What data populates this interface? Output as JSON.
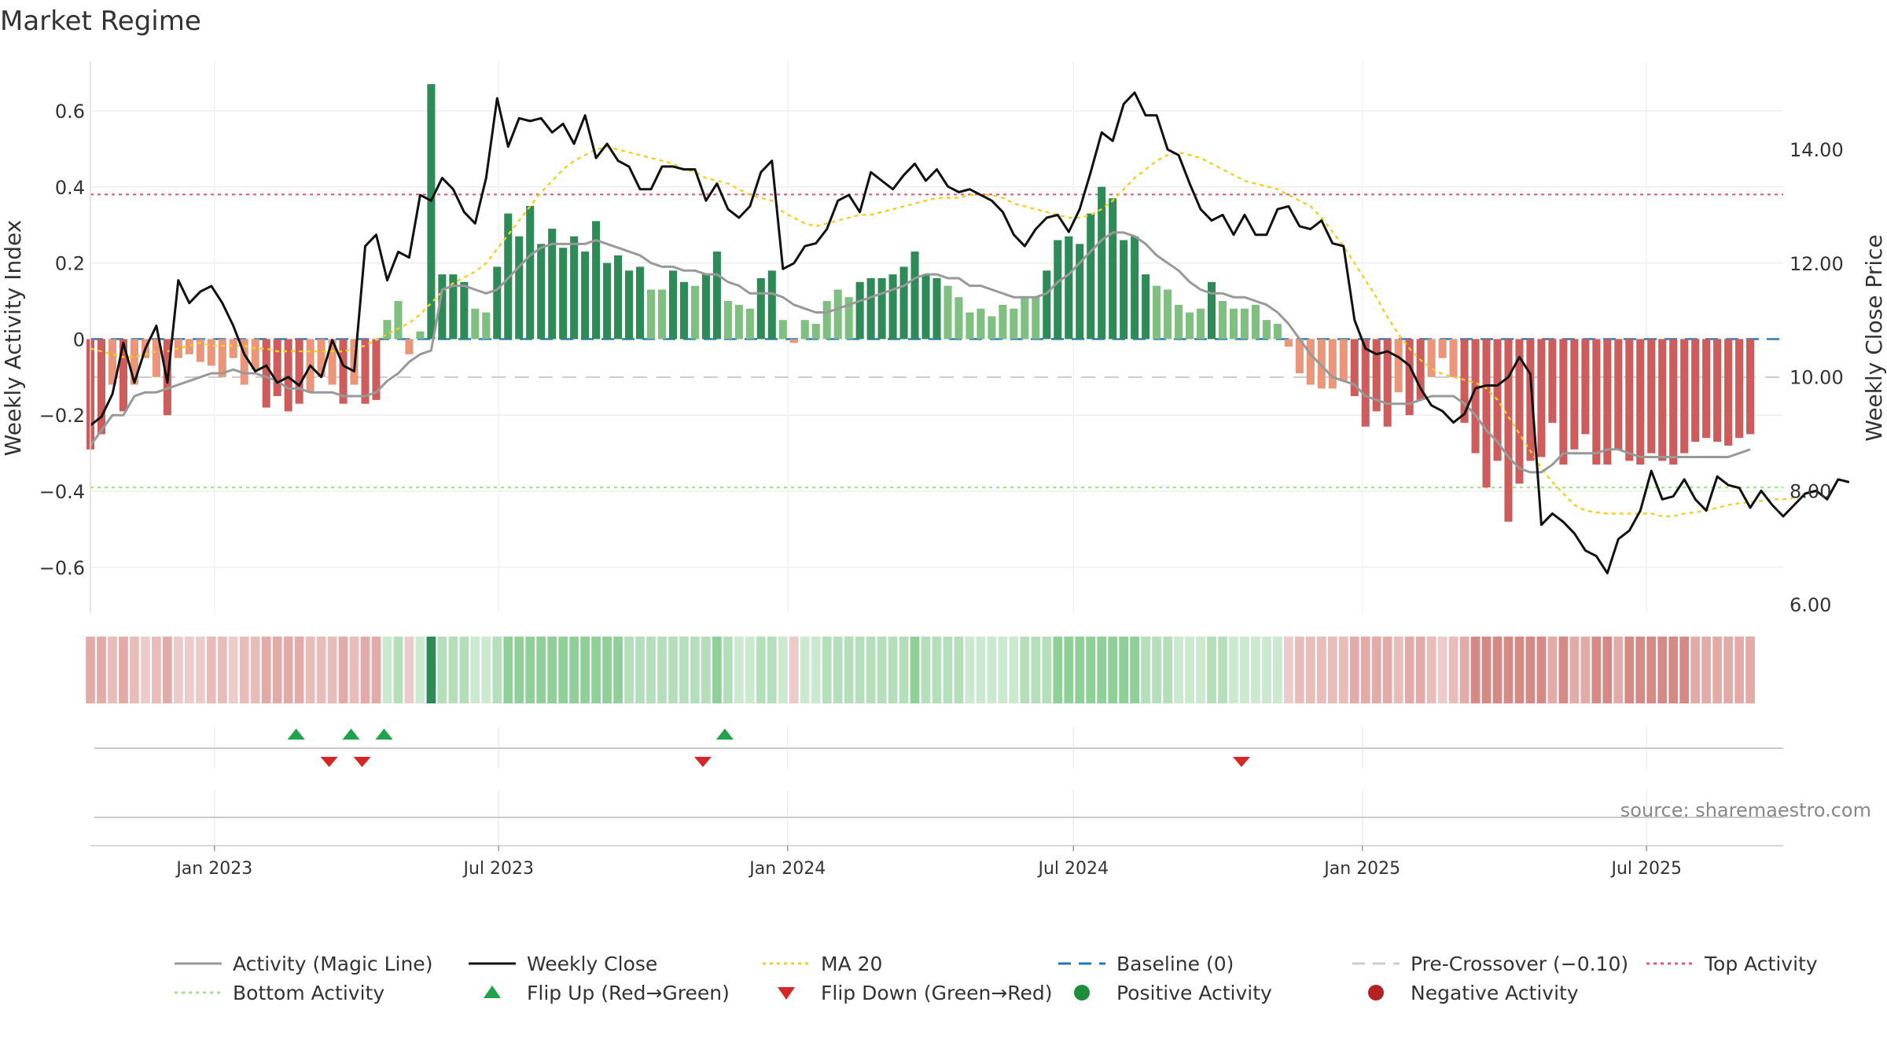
{
  "title": "Market Regime",
  "source": "source: sharemaestro.com",
  "colors": {
    "pos_strong": "#2e8b57",
    "pos_weak": "#7fbf7f",
    "neg_strong": "#cd5c5c",
    "neg_weak": "#e9967a",
    "close": "#111111",
    "activity": "#999999",
    "ma": "#f2d021",
    "baseline": "#1f77b4",
    "pre": "#cccccc",
    "top": "#e05a7a",
    "bottom": "#a6e08a",
    "flip_up": "#22a24a",
    "flip_down": "#d62728",
    "pos_dot": "#1e8c3a",
    "neg_dot": "#b22222"
  },
  "chart_data": {
    "type": "bar",
    "title": "Market Regime",
    "ylabel_left": "Weekly Activity Index",
    "ylabel_right": "Weekly Close Price",
    "yticks_left": [
      "0.6",
      "0.4",
      "0.2",
      "0",
      "−0.2",
      "−0.4",
      "−0.6"
    ],
    "yticks_left_values": [
      0.6,
      0.4,
      0.2,
      0,
      -0.2,
      -0.4,
      -0.6
    ],
    "yticks_right": [
      "14.00",
      "12.00",
      "10.00",
      "8.00",
      "6.00"
    ],
    "yticks_right_values": [
      14,
      12,
      10,
      8,
      6
    ],
    "ylim_left": [
      -0.72,
      0.73
    ],
    "ylim_right": [
      5.85,
      15.55
    ],
    "x_range": [
      "2022-10-14",
      "2025-09-26"
    ],
    "xticks": [
      {
        "date": "2023-01-01",
        "label": "Jan 2023"
      },
      {
        "date": "2023-07-01",
        "label": "Jul 2023"
      },
      {
        "date": "2024-01-01",
        "label": "Jan 2024"
      },
      {
        "date": "2024-07-01",
        "label": "Jul 2024"
      },
      {
        "date": "2025-01-01",
        "label": "Jan 2025"
      },
      {
        "date": "2025-07-01",
        "label": "Jul 2025"
      }
    ],
    "start_date": "2022-10-14",
    "interval_days": 7,
    "activity_index": [
      -0.29,
      -0.25,
      -0.12,
      -0.19,
      -0.12,
      -0.05,
      -0.1,
      -0.2,
      -0.05,
      -0.04,
      -0.06,
      -0.07,
      -0.1,
      -0.05,
      -0.12,
      -0.08,
      -0.18,
      -0.15,
      -0.19,
      -0.17,
      -0.14,
      -0.1,
      -0.12,
      -0.17,
      -0.12,
      -0.17,
      -0.16,
      0.05,
      0.1,
      -0.04,
      0.02,
      0.67,
      0.17,
      0.17,
      0.15,
      0.08,
      0.07,
      0.19,
      0.33,
      0.27,
      0.35,
      0.25,
      0.29,
      0.24,
      0.27,
      0.23,
      0.31,
      0.2,
      0.22,
      0.18,
      0.19,
      0.13,
      0.13,
      0.18,
      0.15,
      0.14,
      0.17,
      0.23,
      0.1,
      0.09,
      0.08,
      0.16,
      0.18,
      0.05,
      -0.01,
      0.05,
      0.04,
      0.1,
      0.13,
      0.11,
      0.15,
      0.16,
      0.16,
      0.17,
      0.19,
      0.23,
      0.17,
      0.16,
      0.14,
      0.11,
      0.07,
      0.08,
      0.06,
      0.09,
      0.08,
      0.11,
      0.11,
      0.18,
      0.26,
      0.27,
      0.25,
      0.33,
      0.4,
      0.37,
      0.26,
      0.27,
      0.17,
      0.14,
      0.13,
      0.09,
      0.07,
      0.08,
      0.15,
      0.1,
      0.08,
      0.08,
      0.09,
      0.05,
      0.04,
      -0.02,
      -0.09,
      -0.12,
      -0.13,
      -0.13,
      -0.11,
      -0.15,
      -0.23,
      -0.19,
      -0.23,
      -0.14,
      -0.2,
      -0.16,
      -0.1,
      -0.05,
      -0.1,
      -0.22,
      -0.3,
      -0.39,
      -0.32,
      -0.48,
      -0.38,
      -0.32,
      -0.31,
      -0.22,
      -0.33,
      -0.29,
      -0.25,
      -0.33,
      -0.33,
      -0.29,
      -0.32,
      -0.33,
      -0.3,
      -0.32,
      -0.33,
      -0.3,
      -0.27,
      -0.26,
      -0.27,
      -0.28,
      -0.26,
      -0.25
    ],
    "weekly_close": [
      9.15,
      9.3,
      9.7,
      10.6,
      9.9,
      10.5,
      10.9,
      9.9,
      11.7,
      11.3,
      11.5,
      11.6,
      11.3,
      10.9,
      10.4,
      10.1,
      10.2,
      9.9,
      10.0,
      9.85,
      10.2,
      10.0,
      10.65,
      10.2,
      10.1,
      12.3,
      12.5,
      11.7,
      12.2,
      12.1,
      13.2,
      13.1,
      13.5,
      13.3,
      12.9,
      12.7,
      13.5,
      14.9,
      14.05,
      14.55,
      14.5,
      14.55,
      14.3,
      14.45,
      14.1,
      14.6,
      13.85,
      14.1,
      13.8,
      13.7,
      13.3,
      13.3,
      13.7,
      13.7,
      13.65,
      13.65,
      13.1,
      13.4,
      12.95,
      12.8,
      13.0,
      13.6,
      13.8,
      11.9,
      12.0,
      12.3,
      12.35,
      12.6,
      13.1,
      13.2,
      12.9,
      13.6,
      13.45,
      13.3,
      13.55,
      13.75,
      13.45,
      13.65,
      13.35,
      13.25,
      13.3,
      13.2,
      13.1,
      12.9,
      12.5,
      12.3,
      12.6,
      12.8,
      12.85,
      12.55,
      12.95,
      13.6,
      14.3,
      14.15,
      14.8,
      15.0,
      14.6,
      14.6,
      14.0,
      13.9,
      13.4,
      12.95,
      12.75,
      12.85,
      12.5,
      12.85,
      12.5,
      12.5,
      12.95,
      13.0,
      12.65,
      12.6,
      12.75,
      12.35,
      12.3,
      11.0,
      10.5,
      10.4,
      10.45,
      10.35,
      10.2,
      9.8,
      9.5,
      9.4,
      9.2,
      9.35,
      9.8,
      9.85,
      9.85,
      10.0,
      10.35,
      10.05,
      7.4,
      7.6,
      7.45,
      7.25,
      6.95,
      6.85,
      6.55,
      7.15,
      7.3,
      7.65,
      8.35,
      7.85,
      7.9,
      8.2,
      7.85,
      7.65,
      8.25,
      8.1,
      8.05,
      7.7,
      8.0,
      7.75,
      7.55,
      7.75,
      7.95,
      8.0,
      7.85,
      8.2,
      8.15
    ],
    "activity_magic_line": [
      -0.28,
      -0.24,
      -0.2,
      -0.2,
      -0.15,
      -0.14,
      -0.14,
      -0.13,
      -0.12,
      -0.11,
      -0.1,
      -0.09,
      -0.09,
      -0.08,
      -0.09,
      -0.09,
      -0.1,
      -0.11,
      -0.13,
      -0.13,
      -0.14,
      -0.14,
      -0.14,
      -0.15,
      -0.15,
      -0.15,
      -0.14,
      -0.11,
      -0.09,
      -0.06,
      -0.04,
      -0.03,
      0.13,
      0.14,
      0.14,
      0.13,
      0.12,
      0.13,
      0.16,
      0.19,
      0.22,
      0.24,
      0.25,
      0.25,
      0.25,
      0.25,
      0.26,
      0.25,
      0.24,
      0.23,
      0.22,
      0.2,
      0.19,
      0.19,
      0.18,
      0.18,
      0.17,
      0.17,
      0.15,
      0.14,
      0.12,
      0.12,
      0.12,
      0.11,
      0.09,
      0.08,
      0.07,
      0.07,
      0.08,
      0.09,
      0.1,
      0.11,
      0.12,
      0.13,
      0.14,
      0.16,
      0.17,
      0.17,
      0.16,
      0.16,
      0.14,
      0.14,
      0.13,
      0.12,
      0.11,
      0.11,
      0.11,
      0.12,
      0.15,
      0.17,
      0.2,
      0.23,
      0.26,
      0.28,
      0.28,
      0.27,
      0.25,
      0.22,
      0.2,
      0.18,
      0.15,
      0.13,
      0.12,
      0.12,
      0.11,
      0.11,
      0.1,
      0.09,
      0.07,
      0.04,
      0.0,
      -0.04,
      -0.07,
      -0.1,
      -0.11,
      -0.12,
      -0.15,
      -0.16,
      -0.17,
      -0.17,
      -0.17,
      -0.16,
      -0.15,
      -0.15,
      -0.15,
      -0.17,
      -0.2,
      -0.24,
      -0.27,
      -0.31,
      -0.34,
      -0.35,
      -0.35,
      -0.33,
      -0.3,
      -0.3,
      -0.3,
      -0.3,
      -0.29,
      -0.29,
      -0.3,
      -0.31,
      -0.31,
      -0.31,
      -0.31,
      -0.31,
      -0.31,
      -0.31,
      -0.31,
      -0.31,
      -0.3,
      -0.29
    ],
    "ma_20": [
      10.5,
      10.45,
      10.4,
      10.35,
      10.35,
      10.4,
      10.45,
      10.45,
      10.5,
      10.55,
      10.6,
      10.55,
      10.55,
      10.55,
      10.55,
      10.5,
      10.5,
      10.45,
      10.45,
      10.45,
      10.45,
      10.45,
      10.45,
      10.45,
      10.5,
      10.55,
      10.65,
      10.75,
      10.85,
      10.95,
      11.1,
      11.3,
      11.5,
      11.65,
      11.75,
      11.85,
      12.0,
      12.25,
      12.5,
      12.75,
      13.0,
      13.25,
      13.45,
      13.65,
      13.8,
      13.9,
      14.0,
      14.05,
      14.0,
      13.95,
      13.9,
      13.85,
      13.8,
      13.75,
      13.65,
      13.6,
      13.5,
      13.45,
      13.4,
      13.3,
      13.2,
      13.15,
      13.1,
      12.9,
      12.8,
      12.7,
      12.65,
      12.7,
      12.75,
      12.8,
      12.85,
      12.85,
      12.9,
      12.95,
      13.0,
      13.05,
      13.1,
      13.15,
      13.15,
      13.15,
      13.2,
      13.2,
      13.2,
      13.15,
      13.05,
      13.0,
      12.95,
      12.9,
      12.85,
      12.8,
      12.8,
      12.85,
      12.95,
      13.1,
      13.3,
      13.5,
      13.65,
      13.8,
      13.9,
      13.95,
      13.9,
      13.85,
      13.75,
      13.65,
      13.55,
      13.45,
      13.4,
      13.35,
      13.3,
      13.2,
      13.1,
      13.0,
      12.8,
      12.55,
      12.3,
      12.0,
      11.7,
      11.4,
      11.05,
      10.75,
      10.5,
      10.3,
      10.15,
      10.05,
      10.0,
      9.95,
      9.9,
      9.8,
      9.6,
      9.3,
      9.0,
      8.7,
      8.4,
      8.15,
      7.95,
      7.75,
      7.65,
      7.62,
      7.6,
      7.6,
      7.6,
      7.6,
      7.6,
      7.55,
      7.55,
      7.6,
      7.62,
      7.65,
      7.7,
      7.75,
      7.78,
      7.8,
      7.82,
      7.85,
      7.85,
      7.88
    ],
    "top_activity": 0.38,
    "bottom_activity": -0.39,
    "pre_crossover": -0.1,
    "baseline": 0,
    "flip_up_dates": [
      "2023-02-22",
      "2023-03-29",
      "2023-04-19",
      "2023-11-22"
    ],
    "flip_down_dates": [
      "2023-03-15",
      "2023-04-05",
      "2023-11-08",
      "2024-10-16"
    ]
  },
  "legend": {
    "items": [
      {
        "label": "Activity (Magic Line)",
        "kind": "line-solid",
        "color": "#999999"
      },
      {
        "label": "Weekly Close",
        "kind": "line-solid",
        "color": "#111111"
      },
      {
        "label": "MA 20",
        "kind": "line-dot",
        "color": "#f2d021"
      },
      {
        "label": "Baseline (0)",
        "kind": "line-dash",
        "color": "#1f77b4"
      },
      {
        "label": "Pre-Crossover (−0.10)",
        "kind": "line-dash",
        "color": "#cccccc"
      },
      {
        "label": "Top Activity",
        "kind": "line-dot",
        "color": "#e05a7a"
      },
      {
        "label": "Bottom Activity",
        "kind": "line-dot",
        "color": "#a6e08a"
      },
      {
        "label": "Flip Up (Red→Green)",
        "kind": "tri-up",
        "color": "#22a24a"
      },
      {
        "label": "Flip Down (Green→Red)",
        "kind": "tri-down",
        "color": "#d62728"
      },
      {
        "label": "Positive Activity",
        "kind": "dot",
        "color": "#1e8c3a"
      },
      {
        "label": "Negative Activity",
        "kind": "dot",
        "color": "#b22222"
      }
    ]
  }
}
